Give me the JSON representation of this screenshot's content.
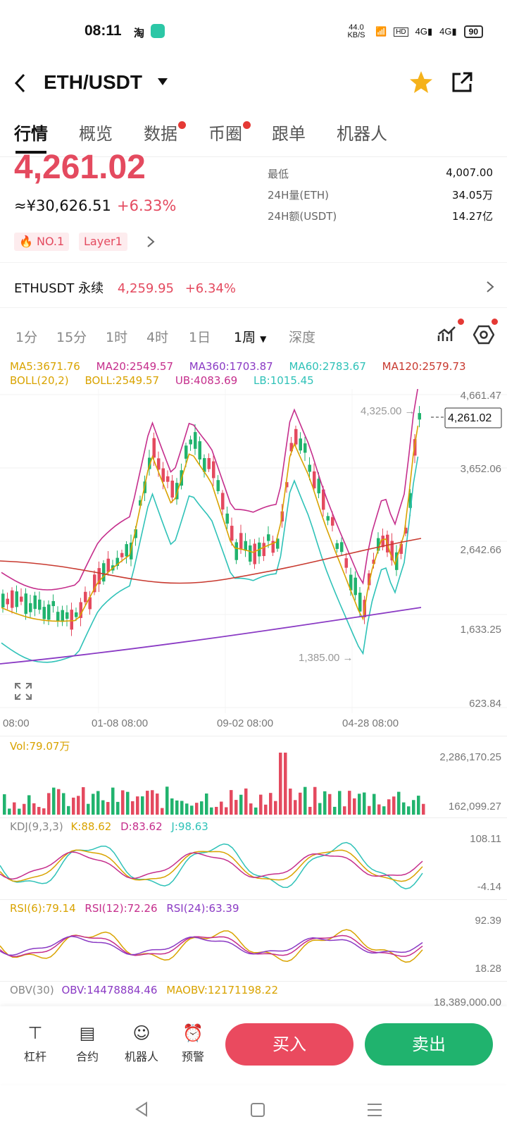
{
  "status": {
    "time": "08:11",
    "speed": "44.0 KB/S",
    "battery": "90",
    "app_icon": "taobao-icon"
  },
  "header": {
    "pair": "ETH/USDT"
  },
  "tabs": [
    {
      "label": "行情"
    },
    {
      "label": "概览"
    },
    {
      "label": "数据"
    },
    {
      "label": "币圈"
    },
    {
      "label": "跟单"
    },
    {
      "label": "机器人"
    }
  ],
  "price": {
    "last": "4,261.02",
    "cny": "≈¥30,626.51",
    "change": "+6.33%"
  },
  "stats": [
    {
      "label": "最低",
      "value": "4,007.00"
    },
    {
      "label": "24H量(ETH)",
      "value": "34.05万"
    },
    {
      "label": "24H额(USDT)",
      "value": "14.27亿"
    }
  ],
  "badges": {
    "rank": "NO.1",
    "tag": "Layer1"
  },
  "perpetual": {
    "name": "ETHUSDT 永续",
    "price": "4,259.95",
    "change": "+6.34%"
  },
  "timeframes": [
    "1分",
    "15分",
    "1时",
    "4时",
    "1日",
    "1周",
    "深度"
  ],
  "indicators": {
    "ma5": "MA5:3671.76",
    "ma20": "MA20:2549.57",
    "ma360": "MA360:1703.87",
    "ma60": "MA60:2783.67",
    "ma120": "MA120:2579.73",
    "boll": "BOLL(20,2)",
    "boll_v": "BOLL:2549.57",
    "ub": "UB:4083.69",
    "lb": "LB:1015.45"
  },
  "price_axis": [
    "4,661.47",
    "3,652.06",
    "2,642.66",
    "1,633.25",
    "623.84"
  ],
  "markers": {
    "high": "4,325.00 →",
    "low": "1,385.00 →",
    "current": "4,261.02"
  },
  "time_axis": [
    "08:00",
    "01-08 08:00",
    "09-02 08:00",
    "04-28 08:00"
  ],
  "volume": {
    "label": "Vol:79.07万",
    "max": "2,286,170.25",
    "min": "162,099.27"
  },
  "kdj": {
    "label": "KDJ(9,3,3)",
    "k": "K:88.62",
    "d": "D:83.62",
    "j": "J:98.63",
    "max": "108.11",
    "min": "-4.14"
  },
  "rsi": {
    "r6": "RSI(6):79.14",
    "r12": "RSI(12):72.26",
    "r24": "RSI(24):63.39",
    "max": "92.39",
    "min": "18.28"
  },
  "obv": {
    "label": "OBV(30)",
    "obv": "OBV:14478884.46",
    "mao": "MAOBV:12171198.22",
    "max": "18,389,000.00"
  },
  "tools": [
    {
      "label": "杠杆",
      "icon": "leverage-icon"
    },
    {
      "label": "合约",
      "icon": "contract-icon"
    },
    {
      "label": "机器人",
      "icon": "robot-icon"
    },
    {
      "label": "预警",
      "icon": "alarm-icon"
    }
  ],
  "buttons": {
    "buy": "买入",
    "sell": "卖出"
  },
  "colors": {
    "up": "#e44a5f",
    "down": "#21b36e",
    "buy": "#ea4a5f",
    "sell": "#20b36e"
  }
}
